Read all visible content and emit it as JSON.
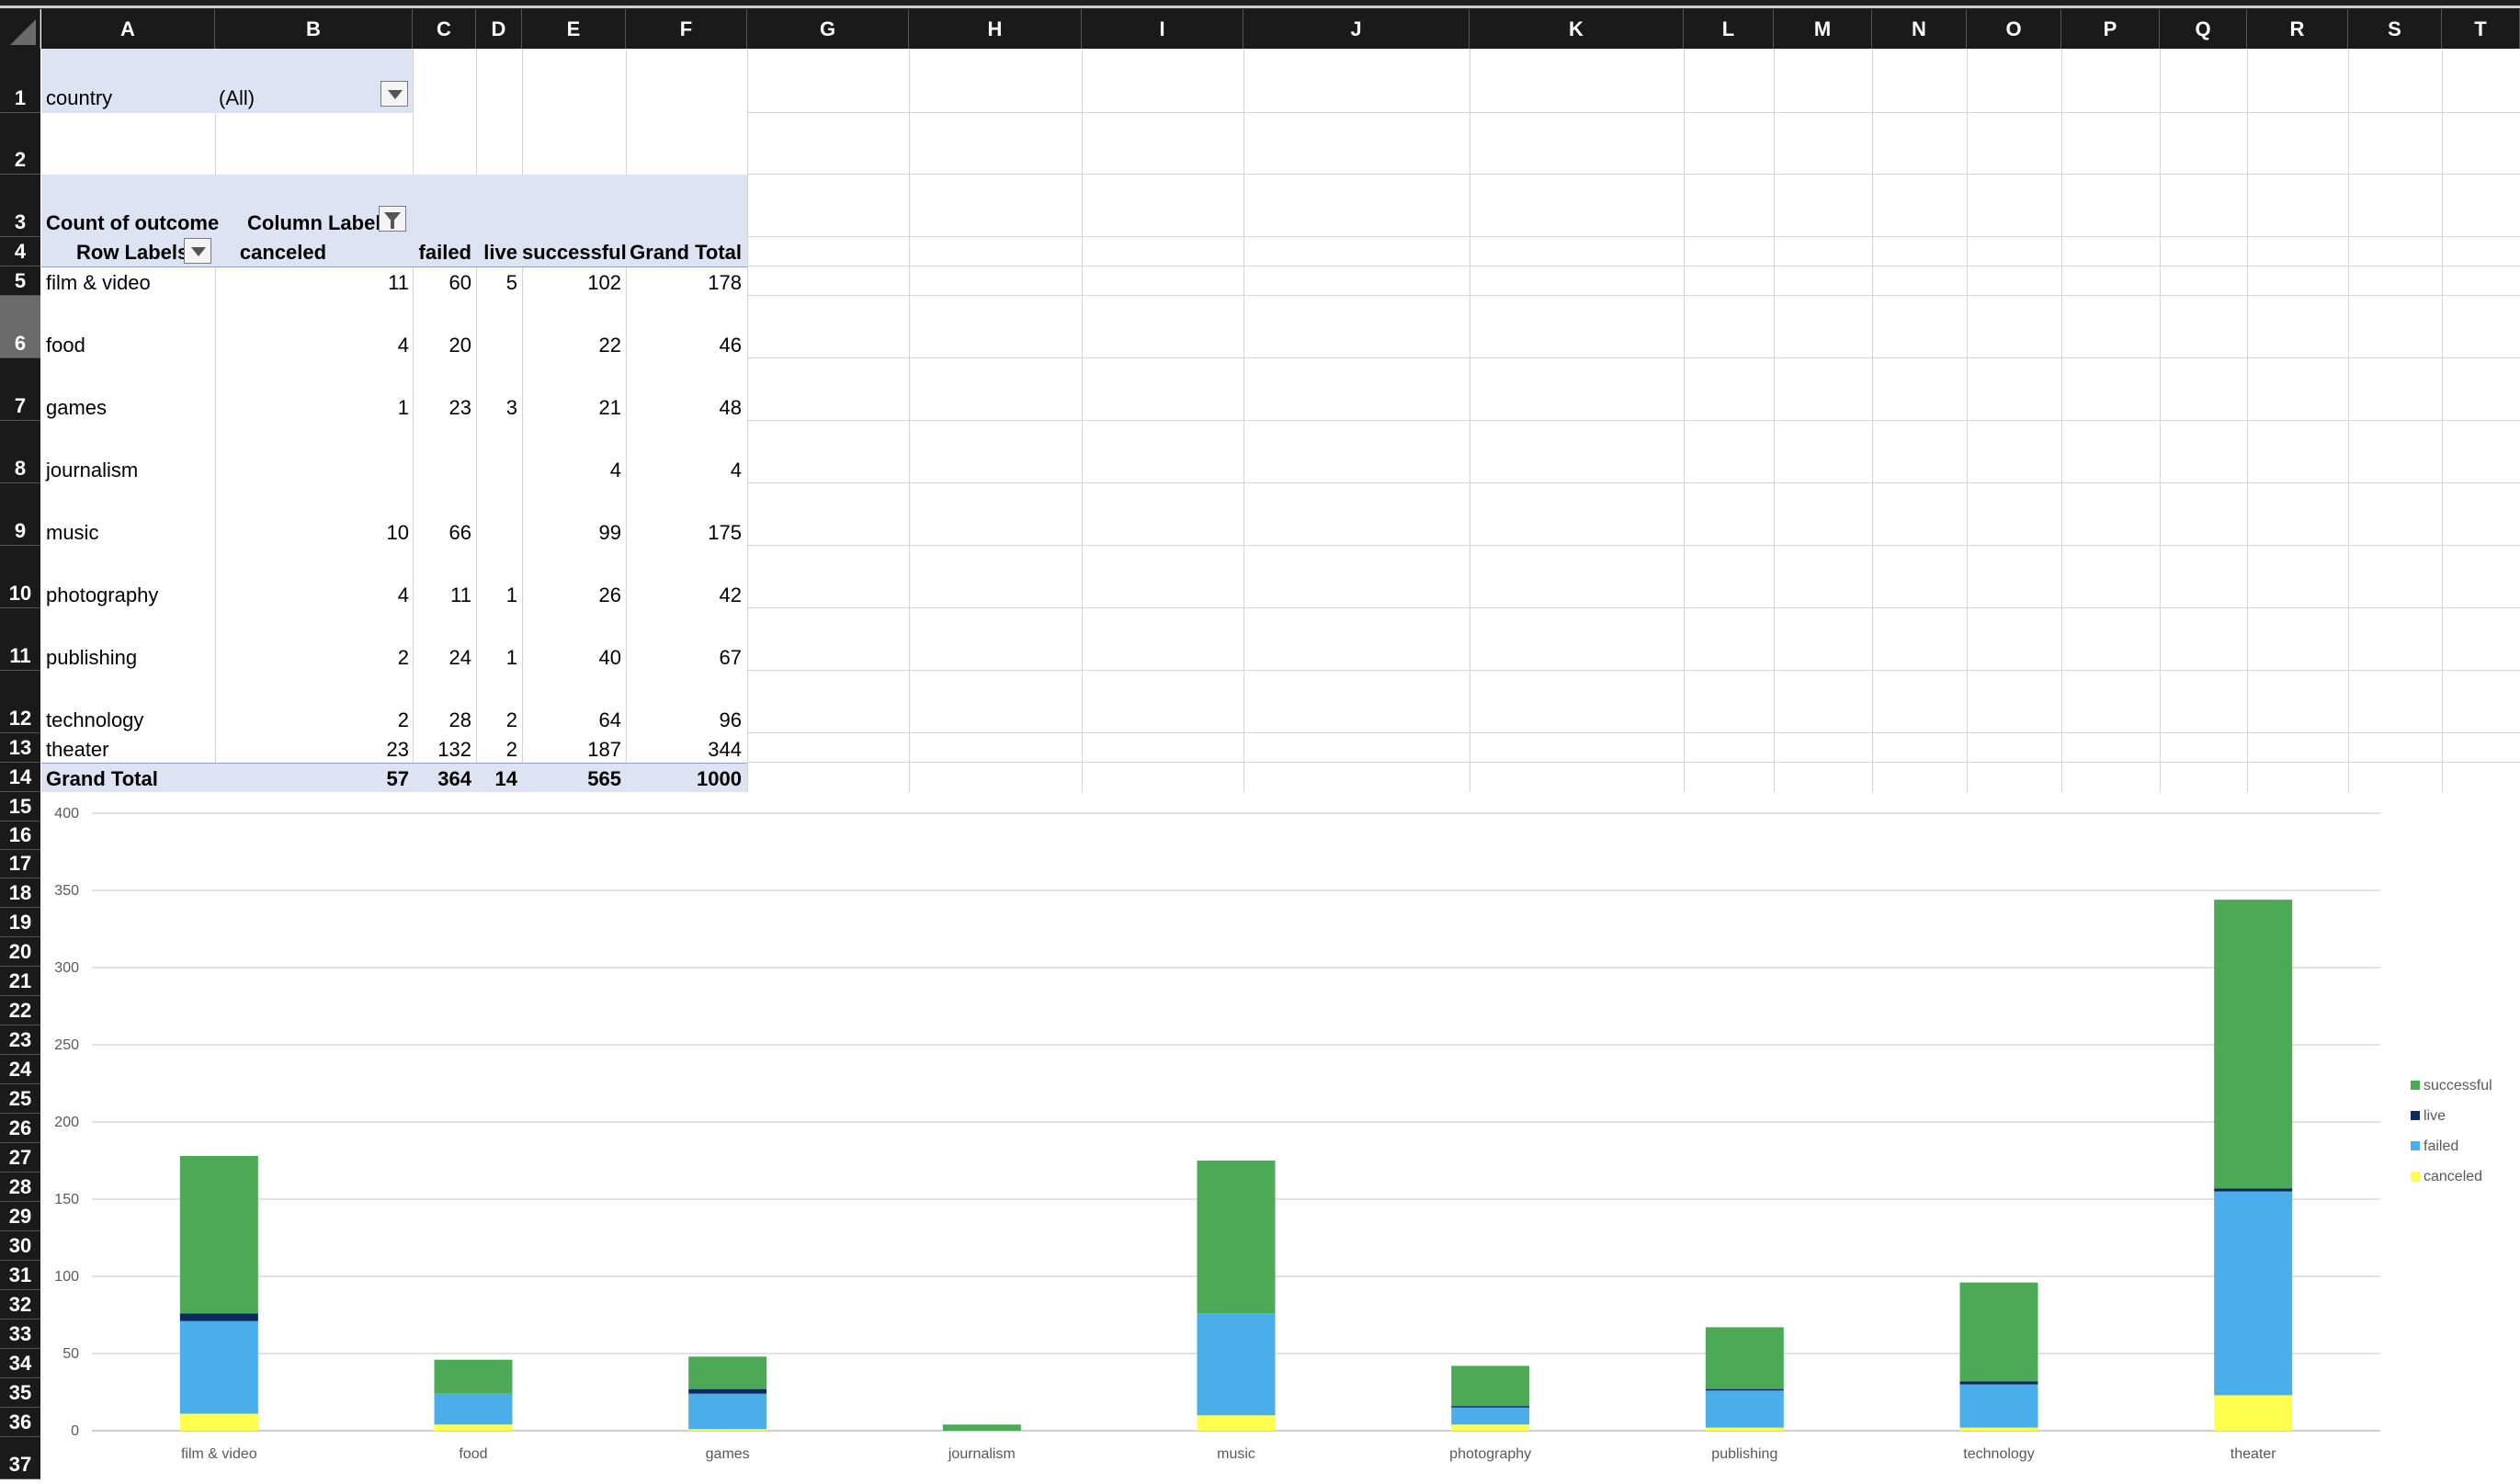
{
  "columns": [
    "A",
    "B",
    "C",
    "D",
    "E",
    "F",
    "G",
    "H",
    "I",
    "J",
    "K",
    "L",
    "M",
    "N",
    "O",
    "P",
    "Q",
    "R",
    "S",
    "T"
  ],
  "rows": [
    "1",
    "2",
    "3",
    "4",
    "5",
    "6",
    "7",
    "8",
    "9",
    "10",
    "11",
    "12",
    "13",
    "14",
    "15",
    "16",
    "17",
    "18",
    "19",
    "20",
    "21",
    "22",
    "23",
    "24",
    "25",
    "26",
    "27",
    "28",
    "29",
    "30",
    "31",
    "32",
    "33",
    "34",
    "35",
    "36",
    "37"
  ],
  "filter": {
    "label": "country",
    "value": "(All)"
  },
  "pivot": {
    "count_label": "Count of outcome",
    "col_labels": "Column Labels",
    "row_labels": "Row Labels",
    "headers": [
      "canceled",
      "failed",
      "live",
      "successful",
      "Grand Total"
    ],
    "rows": [
      {
        "label": "film & video",
        "canceled": "11",
        "failed": "60",
        "live": "5",
        "successful": "102",
        "total": "178"
      },
      {
        "label": "food",
        "canceled": "4",
        "failed": "20",
        "live": "",
        "successful": "22",
        "total": "46"
      },
      {
        "label": "games",
        "canceled": "1",
        "failed": "23",
        "live": "3",
        "successful": "21",
        "total": "48"
      },
      {
        "label": "journalism",
        "canceled": "",
        "failed": "",
        "live": "",
        "successful": "4",
        "total": "4"
      },
      {
        "label": "music",
        "canceled": "10",
        "failed": "66",
        "live": "",
        "successful": "99",
        "total": "175"
      },
      {
        "label": "photography",
        "canceled": "4",
        "failed": "11",
        "live": "1",
        "successful": "26",
        "total": "42"
      },
      {
        "label": "publishing",
        "canceled": "2",
        "failed": "24",
        "live": "1",
        "successful": "40",
        "total": "67"
      },
      {
        "label": "technology",
        "canceled": "2",
        "failed": "28",
        "live": "2",
        "successful": "64",
        "total": "96"
      },
      {
        "label": "theater",
        "canceled": "23",
        "failed": "132",
        "live": "2",
        "successful": "187",
        "total": "344"
      }
    ],
    "grand": {
      "label": "Grand Total",
      "canceled": "57",
      "failed": "364",
      "live": "14",
      "successful": "565",
      "total": "1000"
    }
  },
  "chart_data": {
    "type": "bar",
    "stacked": true,
    "categories": [
      "film & video",
      "food",
      "games",
      "journalism",
      "music",
      "photography",
      "publishing",
      "technology",
      "theater"
    ],
    "series": [
      {
        "name": "canceled",
        "color": "#ffff4d",
        "values": [
          11,
          4,
          1,
          0,
          10,
          4,
          2,
          2,
          23
        ]
      },
      {
        "name": "failed",
        "color": "#4aaeea",
        "values": [
          60,
          20,
          23,
          0,
          66,
          11,
          24,
          28,
          132
        ]
      },
      {
        "name": "live",
        "color": "#0d2a5e",
        "values": [
          5,
          0,
          3,
          0,
          0,
          1,
          1,
          2,
          2
        ]
      },
      {
        "name": "successful",
        "color": "#4caa57",
        "values": [
          102,
          22,
          21,
          4,
          99,
          26,
          40,
          64,
          187
        ]
      }
    ],
    "ylim": [
      0,
      400
    ],
    "yticks": [
      0,
      50,
      100,
      150,
      200,
      250,
      300,
      350,
      400
    ],
    "legend_position": "right",
    "legend_order": [
      "successful",
      "live",
      "failed",
      "canceled"
    ],
    "grid": true
  }
}
